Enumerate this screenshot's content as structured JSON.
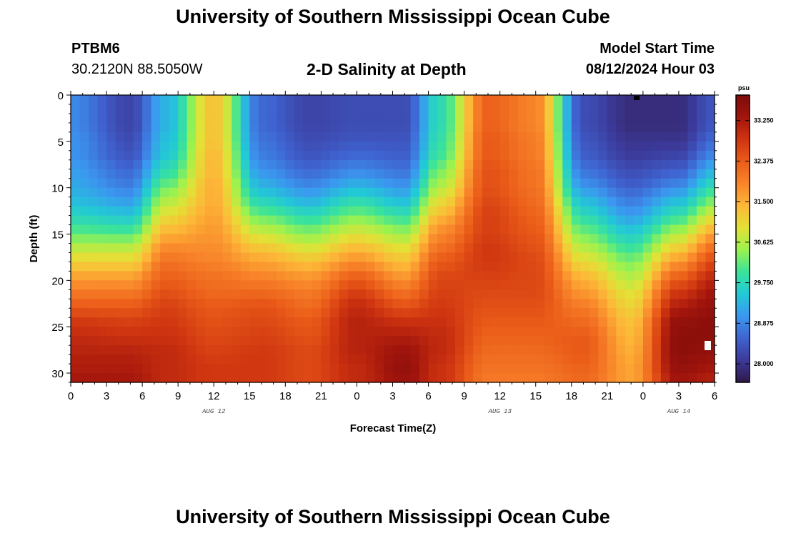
{
  "header": {
    "title_top": "University of Southern Mississippi Ocean Cube",
    "station_id": "PTBM6",
    "station_coords": "30.2120N  88.5050W",
    "plot_title": "2-D Salinity at Depth",
    "model_start_label": "Model Start Time",
    "model_start_value": "08/12/2024 Hour 03",
    "title_bottom": "University of Southern Mississippi Ocean Cube"
  },
  "chart_data": {
    "type": "heatmap",
    "title": "2-D Salinity at Depth",
    "xlabel": "Forecast Time(Z)",
    "ylabel": "Depth (ft)",
    "x_range_hours": [
      0,
      54
    ],
    "y_range_ft": [
      0,
      31
    ],
    "x_tick_labels": [
      "0",
      "3",
      "6",
      "9",
      "12",
      "15",
      "18",
      "21",
      "0",
      "3",
      "6",
      "9",
      "12",
      "15",
      "18",
      "21",
      "0",
      "3",
      "6"
    ],
    "y_tick_labels": [
      "0",
      "5",
      "10",
      "15",
      "20",
      "25",
      "30"
    ],
    "date_labels": [
      {
        "text": "AUG 12",
        "hour": 12
      },
      {
        "text": "AUG 13",
        "hour": 36
      },
      {
        "text": "AUG 14",
        "hour": 51
      }
    ],
    "colorbar": {
      "unit": "psu",
      "min": 27.6,
      "max": 33.8,
      "tick_labels": [
        "33.250",
        "32.375",
        "31.500",
        "30.625",
        "29.750",
        "28.875",
        "28.000"
      ],
      "tick_values": [
        33.25,
        32.375,
        31.5,
        30.625,
        29.75,
        28.875,
        28.0
      ],
      "colors": [
        "#2e1848",
        "#3c3a9a",
        "#3f63d0",
        "#3b97f0",
        "#22c9d6",
        "#3be39a",
        "#9cf24e",
        "#e3e136",
        "#fdb738",
        "#f8842a",
        "#ea5c19",
        "#ce3410",
        "#a2150c",
        "#7d0b0b"
      ]
    },
    "series": [
      {
        "name": "profile_0h",
        "hour": 0,
        "values": [
          28.9,
          28.9,
          28.9,
          29.0,
          29.0,
          29.1,
          29.2,
          29.4,
          29.7,
          30.1,
          30.6,
          31.1,
          31.6,
          32.0,
          32.4,
          32.8,
          33.0,
          33.1,
          33.2,
          33.3
        ]
      },
      {
        "name": "profile_5h",
        "hour": 5,
        "values": [
          28.2,
          28.2,
          28.2,
          28.3,
          28.4,
          28.6,
          28.8,
          29.1,
          29.5,
          30.0,
          30.6,
          31.1,
          31.6,
          32.0,
          32.4,
          32.7,
          32.9,
          33.1,
          33.2,
          33.3
        ]
      },
      {
        "name": "profile_8h",
        "hour": 8,
        "values": [
          29.3,
          29.3,
          29.3,
          29.4,
          29.5,
          29.8,
          30.2,
          30.6,
          31.0,
          31.4,
          31.8,
          32.1,
          32.3,
          32.5,
          32.7,
          32.8,
          32.9,
          33.0,
          33.0,
          33.0
        ]
      },
      {
        "name": "profile_12h",
        "hour": 12,
        "values": [
          31.3,
          31.3,
          31.3,
          31.3,
          31.4,
          31.4,
          31.5,
          31.5,
          31.6,
          31.7,
          31.8,
          31.9,
          32.1,
          32.2,
          32.4,
          32.5,
          32.6,
          32.7,
          32.8,
          32.8
        ]
      },
      {
        "name": "profile_16h",
        "hour": 16,
        "values": [
          28.6,
          28.6,
          28.6,
          28.7,
          28.8,
          29.0,
          29.3,
          29.7,
          30.2,
          30.7,
          31.2,
          31.6,
          31.9,
          32.2,
          32.5,
          32.6,
          32.7,
          32.8,
          32.8,
          32.8
        ]
      },
      {
        "name": "profile_20h",
        "hour": 20,
        "values": [
          28.2,
          28.2,
          28.2,
          28.3,
          28.4,
          28.6,
          28.9,
          29.3,
          29.8,
          30.3,
          30.8,
          31.3,
          31.7,
          32.0,
          32.2,
          32.4,
          32.5,
          32.6,
          32.6,
          32.6
        ]
      },
      {
        "name": "profile_24h",
        "hour": 24,
        "values": [
          28.3,
          28.3,
          28.3,
          28.4,
          28.6,
          28.9,
          29.3,
          29.8,
          30.3,
          30.8,
          31.3,
          31.8,
          32.3,
          32.7,
          33.0,
          33.1,
          33.1,
          33.1,
          33.0,
          33.0
        ]
      },
      {
        "name": "profile_28h",
        "hour": 28,
        "values": [
          28.3,
          28.3,
          28.3,
          28.4,
          28.5,
          28.7,
          29.0,
          29.4,
          29.9,
          30.4,
          30.9,
          31.3,
          31.7,
          32.1,
          32.5,
          32.9,
          33.2,
          33.4,
          33.5,
          33.4
        ]
      },
      {
        "name": "profile_31h",
        "hour": 31,
        "values": [
          29.8,
          29.8,
          29.8,
          29.9,
          30.0,
          30.3,
          30.6,
          31.0,
          31.4,
          31.8,
          32.1,
          32.4,
          32.6,
          32.7,
          32.8,
          32.9,
          33.0,
          33.0,
          32.9,
          32.9
        ]
      },
      {
        "name": "profile_35h",
        "hour": 35,
        "values": [
          32.3,
          32.3,
          32.3,
          32.4,
          32.4,
          32.5,
          32.5,
          32.6,
          32.7,
          32.7,
          32.8,
          32.8,
          32.7,
          32.6,
          32.5,
          32.4,
          32.3,
          32.2,
          32.1,
          32.0
        ]
      },
      {
        "name": "profile_39h",
        "hour": 39,
        "values": [
          31.9,
          31.9,
          31.9,
          32.0,
          32.0,
          32.1,
          32.1,
          32.2,
          32.3,
          32.4,
          32.5,
          32.6,
          32.6,
          32.6,
          32.5,
          32.4,
          32.3,
          32.2,
          32.1,
          32.0
        ]
      },
      {
        "name": "profile_43h",
        "hour": 43,
        "values": [
          28.3,
          28.3,
          28.3,
          28.4,
          28.5,
          28.7,
          29.0,
          29.4,
          29.8,
          30.2,
          30.6,
          31.0,
          31.4,
          31.7,
          32.0,
          32.2,
          32.4,
          32.4,
          32.3,
          32.2
        ]
      },
      {
        "name": "profile_47h",
        "hour": 47,
        "values": [
          27.9,
          27.9,
          27.9,
          28.0,
          28.1,
          28.3,
          28.5,
          28.8,
          29.1,
          29.5,
          29.9,
          30.3,
          30.6,
          30.9,
          31.1,
          31.3,
          31.4,
          31.5,
          31.6,
          31.6
        ]
      },
      {
        "name": "profile_51h",
        "hour": 51,
        "values": [
          27.9,
          27.9,
          27.9,
          28.0,
          28.2,
          28.5,
          28.9,
          29.4,
          29.9,
          30.5,
          31.1,
          31.7,
          32.3,
          32.8,
          33.2,
          33.5,
          33.6,
          33.6,
          33.5,
          33.3
        ]
      },
      {
        "name": "profile_54h",
        "hour": 54,
        "values": [
          28.4,
          28.4,
          28.4,
          28.6,
          28.9,
          29.3,
          29.8,
          30.3,
          30.9,
          31.5,
          32.1,
          32.6,
          33.0,
          33.3,
          33.5,
          33.6,
          33.6,
          33.5,
          33.3,
          33.1
        ]
      }
    ],
    "profile_depths_ft": [
      0,
      1.63,
      3.26,
      4.89,
      6.53,
      8.16,
      9.79,
      11.42,
      13.05,
      14.68,
      16.32,
      17.95,
      19.58,
      21.21,
      22.84,
      24.47,
      26.11,
      27.74,
      29.37,
      31.0
    ]
  }
}
